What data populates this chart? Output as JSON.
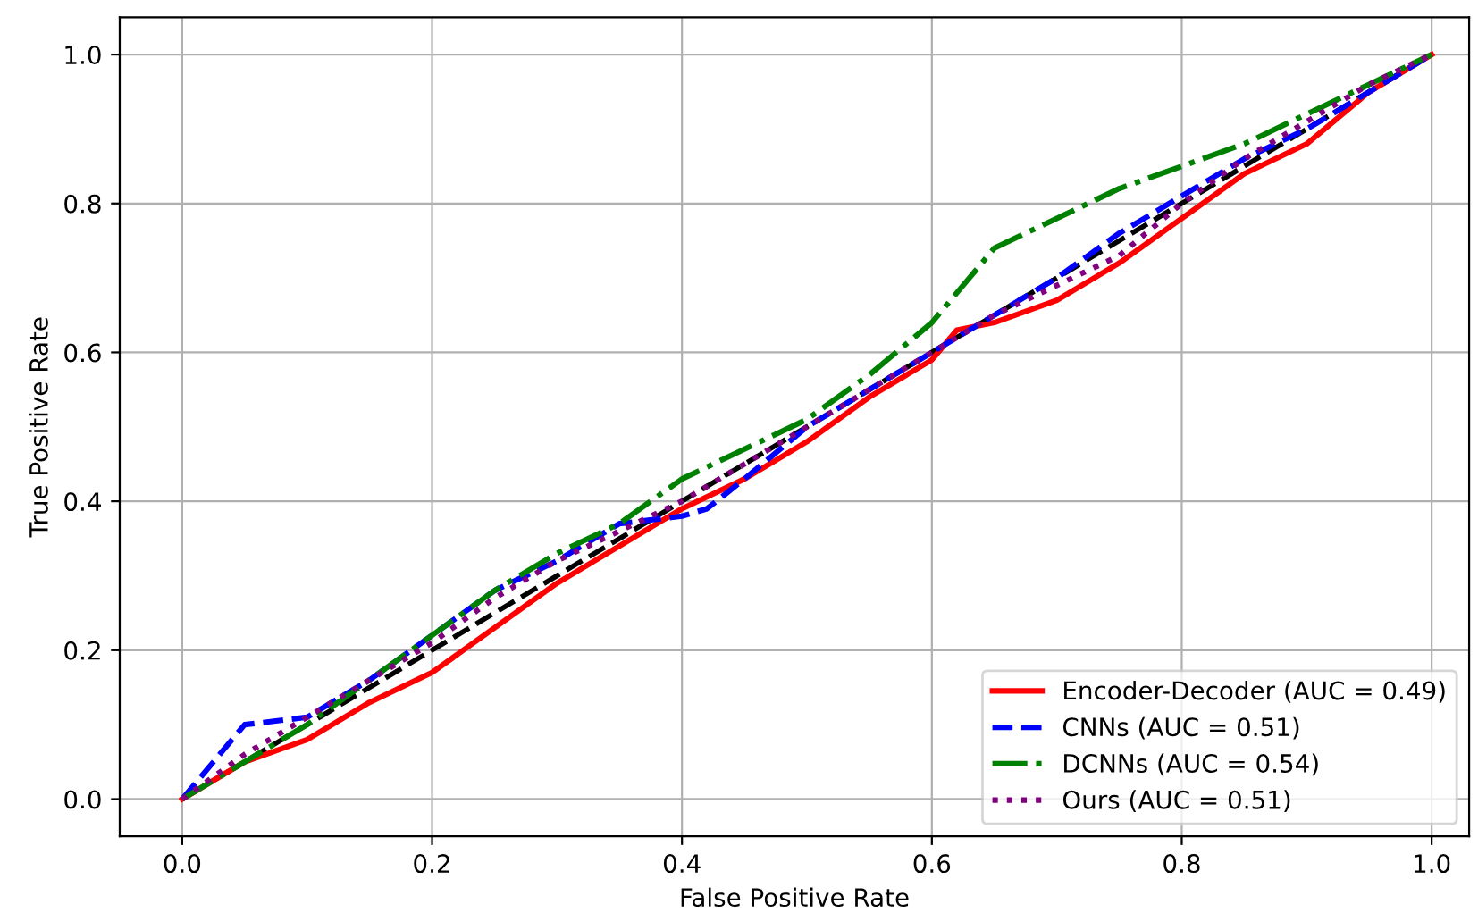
{
  "chart_data": {
    "type": "line",
    "xlabel": "False Positive Rate",
    "ylabel": "True Positive Rate",
    "xlim": [
      -0.05,
      1.03
    ],
    "ylim": [
      -0.05,
      1.05
    ],
    "xticks": [
      {
        "value": 0,
        "label": "0.0"
      },
      0.2,
      0.4,
      0.6,
      0.8,
      {
        "value": 1,
        "label": "1.0"
      }
    ],
    "yticks": [
      {
        "value": 0,
        "label": "0.0"
      },
      0.2,
      0.4,
      0.6,
      0.8,
      {
        "value": 1,
        "label": "1.0"
      }
    ],
    "grid": true,
    "legend": "bottom right",
    "marker": "none",
    "series": [
      {
        "name": "Encoder-Decoder (AUC = 0.49)",
        "color": "#ff0000",
        "line_style": "solid",
        "x": [
          0,
          0.05,
          0.1,
          0.15,
          0.2,
          0.25,
          0.3,
          0.35,
          0.4,
          0.45,
          0.5,
          0.55,
          0.6,
          0.62,
          0.65,
          0.7,
          0.75,
          0.8,
          0.85,
          0.9,
          0.95,
          1
        ],
        "values": [
          0,
          0.05,
          0.08,
          0.13,
          0.17,
          0.23,
          0.29,
          0.34,
          0.39,
          0.43,
          0.48,
          0.54,
          0.59,
          0.63,
          0.64,
          0.67,
          0.72,
          0.78,
          0.84,
          0.88,
          0.95,
          1
        ]
      },
      {
        "name": "CNNs (AUC = 0.51)",
        "color": "#0000ff",
        "line_style": "dashed",
        "x": [
          0,
          0.03,
          0.05,
          0.1,
          0.15,
          0.2,
          0.25,
          0.3,
          0.35,
          0.4,
          0.42,
          0.45,
          0.5,
          0.55,
          0.6,
          0.65,
          0.7,
          0.75,
          0.8,
          0.85,
          0.9,
          0.95,
          1
        ],
        "values": [
          0,
          0.06,
          0.1,
          0.11,
          0.16,
          0.22,
          0.28,
          0.32,
          0.37,
          0.38,
          0.39,
          0.43,
          0.5,
          0.55,
          0.6,
          0.65,
          0.7,
          0.76,
          0.81,
          0.86,
          0.9,
          0.95,
          1
        ]
      },
      {
        "name": "DCNNs (AUC = 0.54)",
        "color": "#008000",
        "line_style": "dashdot",
        "x": [
          0,
          0.05,
          0.1,
          0.15,
          0.2,
          0.25,
          0.3,
          0.35,
          0.4,
          0.45,
          0.5,
          0.55,
          0.6,
          0.63,
          0.65,
          0.7,
          0.75,
          0.8,
          0.85,
          0.9,
          0.95,
          1
        ],
        "values": [
          0,
          0.05,
          0.1,
          0.16,
          0.22,
          0.28,
          0.33,
          0.37,
          0.43,
          0.47,
          0.51,
          0.57,
          0.64,
          0.7,
          0.74,
          0.78,
          0.82,
          0.85,
          0.88,
          0.92,
          0.96,
          1
        ]
      },
      {
        "name": "Ours (AUC = 0.51)",
        "color": "#800080",
        "line_style": "dotted",
        "x": [
          0,
          0.05,
          0.1,
          0.15,
          0.2,
          0.25,
          0.3,
          0.35,
          0.4,
          0.45,
          0.5,
          0.55,
          0.6,
          0.65,
          0.7,
          0.75,
          0.8,
          0.85,
          0.9,
          0.95,
          1
        ],
        "values": [
          0,
          0.06,
          0.11,
          0.16,
          0.21,
          0.27,
          0.32,
          0.36,
          0.4,
          0.45,
          0.5,
          0.55,
          0.6,
          0.65,
          0.69,
          0.73,
          0.8,
          0.86,
          0.91,
          0.96,
          1
        ]
      },
      {
        "color": "#000000",
        "line_style": "dashed",
        "x": [
          0,
          1
        ],
        "values": [
          0,
          1
        ]
      }
    ]
  }
}
